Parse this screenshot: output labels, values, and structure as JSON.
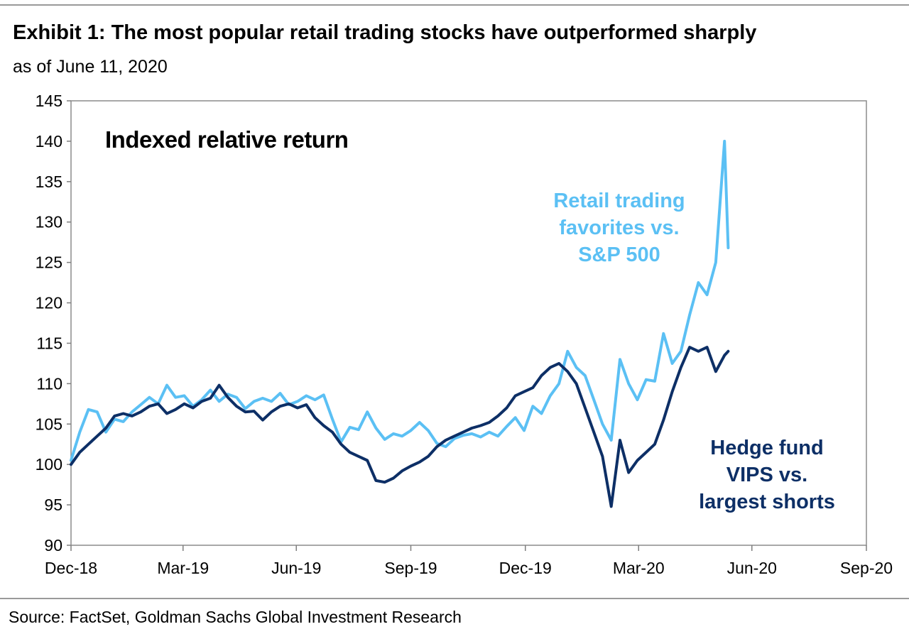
{
  "header": {
    "title": "Exhibit 1: The most popular retail trading stocks have outperformed sharply",
    "subtitle": "as of June 11, 2020"
  },
  "footer": {
    "source": "Source: FactSet, Goldman Sachs Global Investment Research"
  },
  "colors": {
    "retail": "#5bc0f4",
    "hedge": "#0d2f66",
    "axis": "#7f7f7f"
  },
  "chart_data": {
    "type": "line",
    "title": "",
    "annotation_label": "Indexed relative return",
    "xlabel": "",
    "ylabel": "",
    "ylim": [
      90,
      145
    ],
    "yticks": [
      90,
      95,
      100,
      105,
      110,
      115,
      120,
      125,
      130,
      135,
      140,
      145
    ],
    "xlim": [
      "2018-12-31",
      "2020-09-30"
    ],
    "xticks": [
      {
        "date": "2018-12-31",
        "label": "Dec-18"
      },
      {
        "date": "2019-03-31",
        "label": "Mar-19"
      },
      {
        "date": "2019-06-30",
        "label": "Jun-19"
      },
      {
        "date": "2019-09-30",
        "label": "Sep-19"
      },
      {
        "date": "2019-12-31",
        "label": "Dec-19"
      },
      {
        "date": "2020-03-31",
        "label": "Mar-20"
      },
      {
        "date": "2020-06-30",
        "label": "Jun-20"
      },
      {
        "date": "2020-09-30",
        "label": "Sep-20"
      }
    ],
    "grid": false,
    "legend": "none",
    "series": [
      {
        "name": "Retail trading favorites vs. S&P 500",
        "label_lines": [
          "Retail trading",
          "favorites vs.",
          "S&P 500"
        ],
        "points": [
          [
            "2018-12-31",
            100.5
          ],
          [
            "2019-01-07",
            104.0
          ],
          [
            "2019-01-14",
            106.8
          ],
          [
            "2019-01-21",
            106.5
          ],
          [
            "2019-01-28",
            104.0
          ],
          [
            "2019-02-04",
            105.6
          ],
          [
            "2019-02-11",
            105.3
          ],
          [
            "2019-02-18",
            106.5
          ],
          [
            "2019-02-25",
            107.4
          ],
          [
            "2019-03-04",
            108.3
          ],
          [
            "2019-03-11",
            107.5
          ],
          [
            "2019-03-18",
            109.8
          ],
          [
            "2019-03-25",
            108.3
          ],
          [
            "2019-04-01",
            108.5
          ],
          [
            "2019-04-08",
            107.2
          ],
          [
            "2019-04-15",
            108.0
          ],
          [
            "2019-04-22",
            109.2
          ],
          [
            "2019-04-29",
            107.8
          ],
          [
            "2019-05-06",
            108.7
          ],
          [
            "2019-05-13",
            108.3
          ],
          [
            "2019-05-20",
            106.9
          ],
          [
            "2019-05-27",
            107.8
          ],
          [
            "2019-06-03",
            108.2
          ],
          [
            "2019-06-10",
            107.8
          ],
          [
            "2019-06-17",
            108.8
          ],
          [
            "2019-06-24",
            107.4
          ],
          [
            "2019-07-01",
            107.8
          ],
          [
            "2019-07-08",
            108.5
          ],
          [
            "2019-07-15",
            108.0
          ],
          [
            "2019-07-22",
            108.6
          ],
          [
            "2019-07-29",
            105.6
          ],
          [
            "2019-08-05",
            102.8
          ],
          [
            "2019-08-12",
            104.6
          ],
          [
            "2019-08-19",
            104.3
          ],
          [
            "2019-08-26",
            106.5
          ],
          [
            "2019-09-02",
            104.5
          ],
          [
            "2019-09-09",
            103.1
          ],
          [
            "2019-09-16",
            103.8
          ],
          [
            "2019-09-23",
            103.5
          ],
          [
            "2019-09-30",
            104.2
          ],
          [
            "2019-10-07",
            105.2
          ],
          [
            "2019-10-14",
            104.2
          ],
          [
            "2019-10-21",
            102.6
          ],
          [
            "2019-10-28",
            102.2
          ],
          [
            "2019-11-04",
            103.2
          ],
          [
            "2019-11-11",
            103.6
          ],
          [
            "2019-11-18",
            103.8
          ],
          [
            "2019-11-25",
            103.4
          ],
          [
            "2019-12-02",
            104.0
          ],
          [
            "2019-12-09",
            103.5
          ],
          [
            "2019-12-16",
            104.7
          ],
          [
            "2019-12-23",
            105.8
          ],
          [
            "2019-12-30",
            104.2
          ],
          [
            "2020-01-06",
            107.2
          ],
          [
            "2020-01-13",
            106.3
          ],
          [
            "2020-01-20",
            108.5
          ],
          [
            "2020-01-27",
            110.0
          ],
          [
            "2020-02-03",
            114.0
          ],
          [
            "2020-02-10",
            112.0
          ],
          [
            "2020-02-17",
            111.0
          ],
          [
            "2020-02-24",
            108.0
          ],
          [
            "2020-03-02",
            105.0
          ],
          [
            "2020-03-09",
            103.0
          ],
          [
            "2020-03-16",
            113.0
          ],
          [
            "2020-03-23",
            110.0
          ],
          [
            "2020-03-30",
            108.0
          ],
          [
            "2020-04-06",
            110.5
          ],
          [
            "2020-04-13",
            110.3
          ],
          [
            "2020-04-20",
            116.2
          ],
          [
            "2020-04-27",
            112.5
          ],
          [
            "2020-05-04",
            114.0
          ],
          [
            "2020-05-11",
            118.5
          ],
          [
            "2020-05-18",
            122.5
          ],
          [
            "2020-05-25",
            121.0
          ],
          [
            "2020-06-01",
            125.0
          ],
          [
            "2020-06-08",
            140.0
          ],
          [
            "2020-06-11",
            126.8
          ]
        ]
      },
      {
        "name": "Hedge fund VIPS vs. largest shorts",
        "label_lines": [
          "Hedge fund",
          "VIPS vs.",
          "largest shorts"
        ],
        "points": [
          [
            "2018-12-31",
            100.0
          ],
          [
            "2019-01-07",
            101.5
          ],
          [
            "2019-01-14",
            102.5
          ],
          [
            "2019-01-21",
            103.5
          ],
          [
            "2019-01-28",
            104.5
          ],
          [
            "2019-02-04",
            106.0
          ],
          [
            "2019-02-11",
            106.3
          ],
          [
            "2019-02-18",
            106.0
          ],
          [
            "2019-02-25",
            106.5
          ],
          [
            "2019-03-04",
            107.2
          ],
          [
            "2019-03-11",
            107.5
          ],
          [
            "2019-03-18",
            106.3
          ],
          [
            "2019-03-25",
            106.8
          ],
          [
            "2019-04-01",
            107.5
          ],
          [
            "2019-04-08",
            107.0
          ],
          [
            "2019-04-15",
            107.8
          ],
          [
            "2019-04-22",
            108.2
          ],
          [
            "2019-04-29",
            109.8
          ],
          [
            "2019-05-06",
            108.3
          ],
          [
            "2019-05-13",
            107.2
          ],
          [
            "2019-05-20",
            106.5
          ],
          [
            "2019-05-27",
            106.6
          ],
          [
            "2019-06-03",
            105.5
          ],
          [
            "2019-06-10",
            106.5
          ],
          [
            "2019-06-17",
            107.2
          ],
          [
            "2019-06-24",
            107.5
          ],
          [
            "2019-07-01",
            107.0
          ],
          [
            "2019-07-08",
            107.4
          ],
          [
            "2019-07-15",
            105.8
          ],
          [
            "2019-07-22",
            104.8
          ],
          [
            "2019-07-29",
            104.0
          ],
          [
            "2019-08-05",
            102.5
          ],
          [
            "2019-08-12",
            101.5
          ],
          [
            "2019-08-19",
            101.0
          ],
          [
            "2019-08-26",
            100.5
          ],
          [
            "2019-09-02",
            98.0
          ],
          [
            "2019-09-09",
            97.8
          ],
          [
            "2019-09-16",
            98.3
          ],
          [
            "2019-09-23",
            99.2
          ],
          [
            "2019-09-30",
            99.8
          ],
          [
            "2019-10-07",
            100.3
          ],
          [
            "2019-10-14",
            101.0
          ],
          [
            "2019-10-21",
            102.2
          ],
          [
            "2019-10-28",
            103.0
          ],
          [
            "2019-11-04",
            103.5
          ],
          [
            "2019-11-11",
            104.0
          ],
          [
            "2019-11-18",
            104.5
          ],
          [
            "2019-11-25",
            104.8
          ],
          [
            "2019-12-02",
            105.2
          ],
          [
            "2019-12-09",
            106.0
          ],
          [
            "2019-12-16",
            107.0
          ],
          [
            "2019-12-23",
            108.5
          ],
          [
            "2019-12-30",
            109.0
          ],
          [
            "2020-01-06",
            109.5
          ],
          [
            "2020-01-13",
            111.0
          ],
          [
            "2020-01-20",
            112.0
          ],
          [
            "2020-01-27",
            112.5
          ],
          [
            "2020-02-03",
            111.5
          ],
          [
            "2020-02-10",
            110.0
          ],
          [
            "2020-02-17",
            107.0
          ],
          [
            "2020-02-24",
            104.0
          ],
          [
            "2020-03-02",
            101.0
          ],
          [
            "2020-03-09",
            94.8
          ],
          [
            "2020-03-16",
            103.0
          ],
          [
            "2020-03-23",
            99.0
          ],
          [
            "2020-03-30",
            100.5
          ],
          [
            "2020-04-06",
            101.5
          ],
          [
            "2020-04-13",
            102.5
          ],
          [
            "2020-04-20",
            105.5
          ],
          [
            "2020-04-27",
            109.0
          ],
          [
            "2020-05-04",
            112.0
          ],
          [
            "2020-05-11",
            114.5
          ],
          [
            "2020-05-18",
            114.0
          ],
          [
            "2020-05-25",
            114.5
          ],
          [
            "2020-06-01",
            111.5
          ],
          [
            "2020-06-08",
            113.5
          ],
          [
            "2020-06-11",
            114.0
          ]
        ]
      }
    ]
  }
}
